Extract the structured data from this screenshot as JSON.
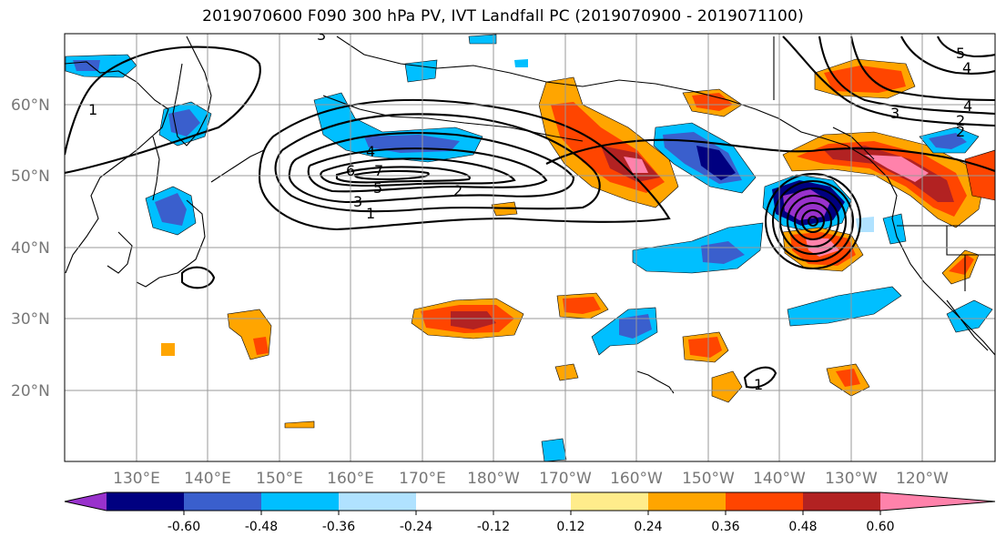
{
  "title": "2019070600 F090 300 hPa PV, IVT Landfall PC (2019070900 - 2019071100)",
  "map": {
    "lat_labels": [
      "60°N",
      "50°N",
      "40°N",
      "30°N",
      "20°N"
    ],
    "lon_labels": [
      "130°E",
      "140°E",
      "150°E",
      "160°E",
      "170°E",
      "180°W",
      "170°W",
      "160°W",
      "150°W",
      "140°W",
      "130°W",
      "120°W"
    ],
    "contour_labels": [
      "1",
      "2",
      "3",
      "4",
      "5",
      "6",
      "7",
      "1",
      "2",
      "3",
      "4",
      "5",
      "1",
      "2",
      "3",
      "4"
    ]
  },
  "colorbar": {
    "colors": [
      "#9932cc",
      "#000080",
      "#3a5fcd",
      "#00bfff",
      "#b0e2ff",
      "#ffffff",
      "#ffffff",
      "#ffec8b",
      "#ffa500",
      "#ff4500",
      "#b22222",
      "#ff82ab"
    ],
    "tick_labels": [
      "-0.60",
      "-0.48",
      "-0.36",
      "-0.24",
      "-0.12",
      "0.12",
      "0.24",
      "0.36",
      "0.48",
      "0.60"
    ]
  }
}
